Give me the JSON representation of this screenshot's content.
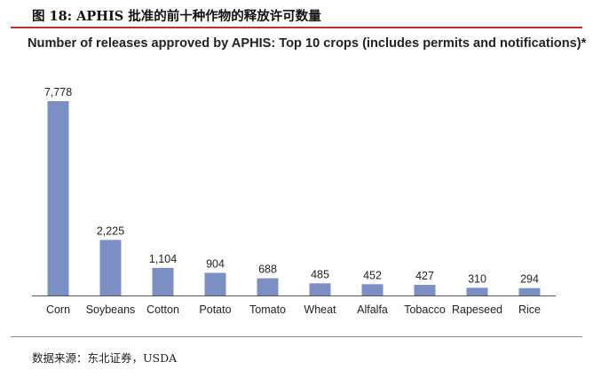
{
  "figure": {
    "title": "图 18: APHIS 批准的前十种作物的释放许可数量",
    "source": "数据来源：东北证券，USDA"
  },
  "chart_data": {
    "type": "bar",
    "title": "Number of releases approved by APHIS: Top 10 crops (includes permits and notifications)*",
    "categories": [
      "Corn",
      "Soybeans",
      "Cotton",
      "Potato",
      "Tomato",
      "Wheat",
      "Alfalfa",
      "Tobacco",
      "Rapeseed",
      "Rice"
    ],
    "values": [
      7778,
      2225,
      1104,
      904,
      688,
      485,
      452,
      427,
      310,
      294
    ],
    "value_labels": [
      "7,778",
      "2,225",
      "1,104",
      "904",
      "688",
      "485",
      "452",
      "427",
      "310",
      "294"
    ],
    "xlabel": "",
    "ylabel": "",
    "ylim": [
      0,
      7778
    ],
    "grid": false,
    "legend": "none",
    "bar_color": "#7b8fc4"
  }
}
